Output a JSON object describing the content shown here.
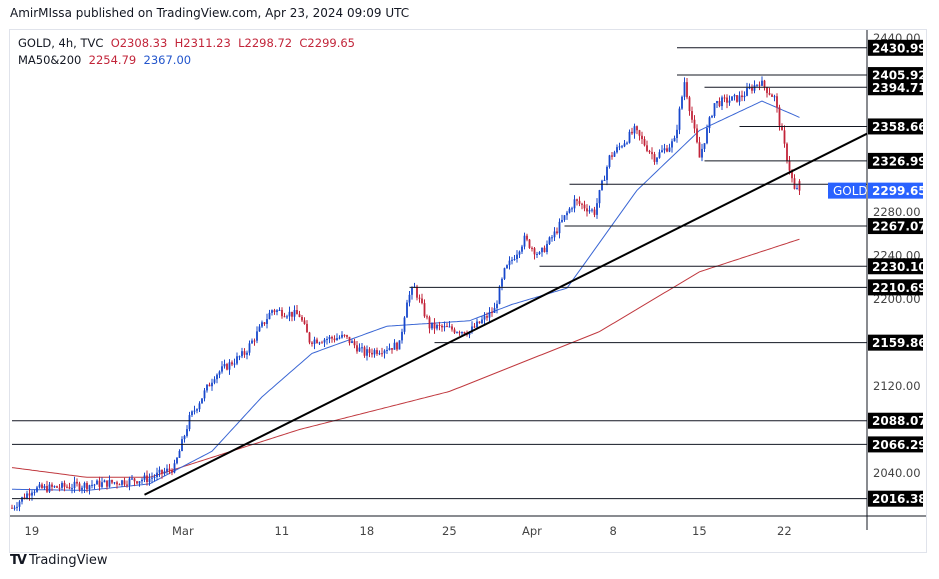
{
  "header": {
    "published": "AmirMIssa published on TradingView.com, Apr 23, 2024 09:09 UTC"
  },
  "legend": {
    "symbol": "GOLD, 4h, TVC",
    "open": "O2308.33",
    "high": "H2311.23",
    "low": "L2298.72",
    "close": "C2299.65",
    "ma_label": "MA50&200",
    "ma1": "2254.79",
    "ma2": "2367.00"
  },
  "footer": {
    "brand": "TradingView"
  },
  "colors": {
    "up": "#1848cc",
    "down": "#c2253a",
    "ma50": "#3a66d4",
    "ma200": "#c0393f",
    "accent": "#2962ff"
  },
  "chart_data": {
    "type": "candlestick",
    "symbol": "GOLD",
    "interval": "4h",
    "ylim": [
      2000,
      2447
    ],
    "y_ticks": [
      "2440.00",
      "2280.00",
      "2240.00",
      "2200.00",
      "2120.00",
      "2040.00"
    ],
    "x_ticks": [
      {
        "label": "19",
        "bar": 7
      },
      {
        "label": "Mar",
        "bar": 66
      },
      {
        "label": "11",
        "bar": 107
      },
      {
        "label": "18",
        "bar": 141
      },
      {
        "label": "25",
        "bar": 174
      },
      {
        "label": "Apr",
        "bar": 206
      },
      {
        "label": "8",
        "bar": 241
      },
      {
        "label": "15",
        "bar": 274
      },
      {
        "label": "22",
        "bar": 308
      }
    ],
    "price_path": [
      [
        0,
        2008
      ],
      [
        8,
        2025
      ],
      [
        35,
        2030
      ],
      [
        55,
        2035
      ],
      [
        65,
        2045
      ],
      [
        71,
        2090
      ],
      [
        81,
        2130
      ],
      [
        93,
        2150
      ],
      [
        104,
        2190
      ],
      [
        115,
        2185
      ],
      [
        119,
        2162
      ],
      [
        133,
        2165
      ],
      [
        141,
        2150
      ],
      [
        155,
        2158
      ],
      [
        158,
        2200
      ],
      [
        161,
        2210
      ],
      [
        167,
        2175
      ],
      [
        183,
        2170
      ],
      [
        193,
        2190
      ],
      [
        197,
        2225
      ],
      [
        205,
        2255
      ],
      [
        211,
        2240
      ],
      [
        217,
        2260
      ],
      [
        225,
        2290
      ],
      [
        233,
        2280
      ],
      [
        239,
        2330
      ],
      [
        249,
        2355
      ],
      [
        257,
        2330
      ],
      [
        265,
        2345
      ],
      [
        269,
        2400
      ],
      [
        275,
        2330
      ],
      [
        281,
        2380
      ],
      [
        291,
        2385
      ],
      [
        299,
        2400
      ],
      [
        305,
        2385
      ],
      [
        309,
        2340
      ],
      [
        313,
        2300
      ],
      [
        315,
        2299.65
      ]
    ],
    "ma50": [
      [
        0,
        2025
      ],
      [
        30,
        2024
      ],
      [
        55,
        2030
      ],
      [
        80,
        2060
      ],
      [
        100,
        2110
      ],
      [
        120,
        2150
      ],
      [
        150,
        2175
      ],
      [
        183,
        2180
      ],
      [
        200,
        2195
      ],
      [
        222,
        2210
      ],
      [
        250,
        2300
      ],
      [
        275,
        2355
      ],
      [
        300,
        2382
      ],
      [
        315,
        2367
      ]
    ],
    "ma200": [
      [
        0,
        2045
      ],
      [
        30,
        2036
      ],
      [
        55,
        2036
      ],
      [
        115,
        2080
      ],
      [
        175,
        2115
      ],
      [
        235,
        2170
      ],
      [
        275,
        2225
      ],
      [
        315,
        2255
      ]
    ],
    "trendline": {
      "from": [
        53,
        2020
      ],
      "to": [
        343,
        2352
      ]
    },
    "levels": [
      {
        "price": 2430.99,
        "label": "2430.99",
        "start_bar": 266
      },
      {
        "price": 2405.92,
        "label": "2405.92",
        "start_bar": 266
      },
      {
        "price": 2394.71,
        "label": "2394.71",
        "start_bar": 277
      },
      {
        "price": 2358.66,
        "label": "2358.66",
        "start_bar": 291
      },
      {
        "price": 2326.99,
        "label": "2326.99",
        "start_bar": 277
      },
      {
        "price": 2305.5,
        "label": "",
        "start_bar": 223
      },
      {
        "price": 2267.07,
        "label": "2267.07",
        "start_bar": 221
      },
      {
        "price": 2230.1,
        "label": "2230.10",
        "start_bar": 211
      },
      {
        "price": 2210.69,
        "label": "2210.69",
        "start_bar": 159
      },
      {
        "price": 2159.86,
        "label": "2159.86",
        "start_bar": 169
      },
      {
        "price": 2088.07,
        "label": "2088.07",
        "start_bar": 0
      },
      {
        "price": 2066.29,
        "label": "2066.29",
        "start_bar": 0
      },
      {
        "price": 2016.38,
        "label": "2016.38",
        "start_bar": 0
      }
    ],
    "last_price": {
      "badge": "GOLD",
      "value": "2299.65",
      "price": 2299.65
    }
  }
}
